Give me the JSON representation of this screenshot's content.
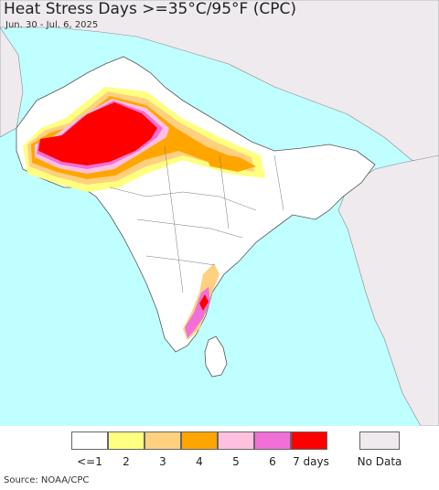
{
  "title": "Heat Stress Days >=35°C/95°F (CPC)",
  "subtitle": "Jun. 30 - Jul. 6, 2025",
  "source": "Source: NOAA/CPC",
  "legend": {
    "items": [
      {
        "label": "<=1",
        "color": "#ffffff"
      },
      {
        "label": "2",
        "color": "#ffff80"
      },
      {
        "label": "3",
        "color": "#ffd080"
      },
      {
        "label": "4",
        "color": "#ffa500"
      },
      {
        "label": "5",
        "color": "#ffc0e0"
      },
      {
        "label": "6",
        "color": "#f070d8"
      },
      {
        "label": "7 days",
        "color": "#ff0000"
      }
    ],
    "nodata": {
      "label": "No Data",
      "color": "#eeeaee"
    }
  },
  "colors": {
    "ocean": "#c0ffff",
    "land": "#ffffff",
    "outside_region": "#eeeaee",
    "border": "#555555"
  }
}
